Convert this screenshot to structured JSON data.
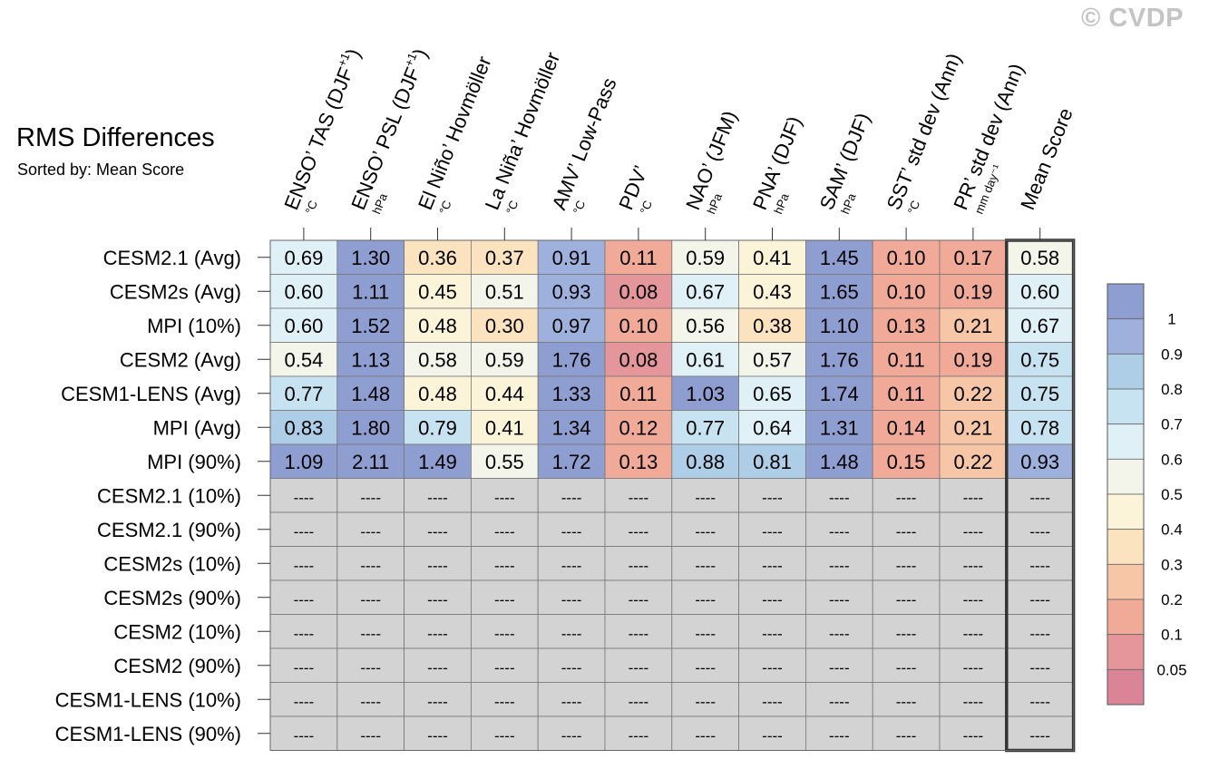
{
  "watermark": "© CVDP",
  "chart_data": {
    "type": "heatmap",
    "title": "RMS Differences",
    "subtitle": "Sorted by: Mean Score",
    "columns": [
      {
        "label": "ENSO’ TAS (DJF",
        "sup": "+1",
        "tail": ")",
        "unit": "°C"
      },
      {
        "label": "ENSO’ PSL (DJF",
        "sup": "+1",
        "tail": ")",
        "unit": "hPa"
      },
      {
        "label": "El Niño’ Hovmöller",
        "sup": "",
        "tail": "",
        "unit": "°C"
      },
      {
        "label": "La Niña’ Hovmöller",
        "sup": "",
        "tail": "",
        "unit": "°C"
      },
      {
        "label": "AMV’ Low-Pass",
        "sup": "",
        "tail": "",
        "unit": "°C"
      },
      {
        "label": "PDV’",
        "sup": "",
        "tail": "",
        "unit": "°C"
      },
      {
        "label": "NAO’ (JFM)",
        "sup": "",
        "tail": "",
        "unit": "hPa"
      },
      {
        "label": "PNA’ (DJF)",
        "sup": "",
        "tail": "",
        "unit": "hPa"
      },
      {
        "label": "SAM’ (DJF)",
        "sup": "",
        "tail": "",
        "unit": "hPa"
      },
      {
        "label": "SST’ std dev (Ann)",
        "sup": "",
        "tail": "",
        "unit": "°C"
      },
      {
        "label": "PR’ std dev (Ann)",
        "sup": "",
        "tail": "",
        "unit": "mm day⁻¹"
      },
      {
        "label": "Mean Score",
        "sup": "",
        "tail": "",
        "unit": ""
      }
    ],
    "rows": [
      {
        "name": "CESM2.1 (Avg)",
        "values": [
          "0.69",
          "1.30",
          "0.36",
          "0.37",
          "0.91",
          "0.11",
          "0.59",
          "0.41",
          "1.45",
          "0.10",
          "0.17",
          "0.58"
        ]
      },
      {
        "name": "CESM2s (Avg)",
        "values": [
          "0.60",
          "1.11",
          "0.45",
          "0.51",
          "0.93",
          "0.08",
          "0.67",
          "0.43",
          "1.65",
          "0.10",
          "0.19",
          "0.60"
        ]
      },
      {
        "name": "MPI (10%)",
        "values": [
          "0.60",
          "1.52",
          "0.48",
          "0.30",
          "0.97",
          "0.10",
          "0.56",
          "0.38",
          "1.10",
          "0.13",
          "0.21",
          "0.67"
        ]
      },
      {
        "name": "CESM2 (Avg)",
        "values": [
          "0.54",
          "1.13",
          "0.58",
          "0.59",
          "1.76",
          "0.08",
          "0.61",
          "0.57",
          "1.76",
          "0.11",
          "0.19",
          "0.75"
        ]
      },
      {
        "name": "CESM1-LENS (Avg)",
        "values": [
          "0.77",
          "1.48",
          "0.48",
          "0.44",
          "1.33",
          "0.11",
          "1.03",
          "0.65",
          "1.74",
          "0.11",
          "0.22",
          "0.75"
        ]
      },
      {
        "name": "MPI (Avg)",
        "values": [
          "0.83",
          "1.80",
          "0.79",
          "0.41",
          "1.34",
          "0.12",
          "0.77",
          "0.64",
          "1.31",
          "0.14",
          "0.21",
          "0.78"
        ]
      },
      {
        "name": "MPI (90%)",
        "values": [
          "1.09",
          "2.11",
          "1.49",
          "0.55",
          "1.72",
          "0.13",
          "0.88",
          "0.81",
          "1.48",
          "0.15",
          "0.22",
          "0.93"
        ]
      },
      {
        "name": "CESM2.1 (10%)",
        "values": [
          "----",
          "----",
          "----",
          "----",
          "----",
          "----",
          "----",
          "----",
          "----",
          "----",
          "----",
          "----"
        ]
      },
      {
        "name": "CESM2.1 (90%)",
        "values": [
          "----",
          "----",
          "----",
          "----",
          "----",
          "----",
          "----",
          "----",
          "----",
          "----",
          "----",
          "----"
        ]
      },
      {
        "name": "CESM2s (10%)",
        "values": [
          "----",
          "----",
          "----",
          "----",
          "----",
          "----",
          "----",
          "----",
          "----",
          "----",
          "----",
          "----"
        ]
      },
      {
        "name": "CESM2s (90%)",
        "values": [
          "----",
          "----",
          "----",
          "----",
          "----",
          "----",
          "----",
          "----",
          "----",
          "----",
          "----",
          "----"
        ]
      },
      {
        "name": "CESM2 (10%)",
        "values": [
          "----",
          "----",
          "----",
          "----",
          "----",
          "----",
          "----",
          "----",
          "----",
          "----",
          "----",
          "----"
        ]
      },
      {
        "name": "CESM2 (90%)",
        "values": [
          "----",
          "----",
          "----",
          "----",
          "----",
          "----",
          "----",
          "----",
          "----",
          "----",
          "----",
          "----"
        ]
      },
      {
        "name": "CESM1-LENS (10%)",
        "values": [
          "----",
          "----",
          "----",
          "----",
          "----",
          "----",
          "----",
          "----",
          "----",
          "----",
          "----",
          "----"
        ]
      },
      {
        "name": "CESM1-LENS (90%)",
        "values": [
          "----",
          "----",
          "----",
          "----",
          "----",
          "----",
          "----",
          "----",
          "----",
          "----",
          "----",
          "----"
        ]
      }
    ],
    "colorbar": {
      "labels": [
        "1",
        "0.9",
        "0.8",
        "0.7",
        "0.6",
        "0.5",
        "0.4",
        "0.3",
        "0.2",
        "0.1",
        "0.05"
      ],
      "levels": [
        0.05,
        0.1,
        0.2,
        0.3,
        0.4,
        0.5,
        0.6,
        0.7,
        0.8,
        0.9,
        1
      ],
      "colors": [
        "#dc8497",
        "#e4969a",
        "#f2aa98",
        "#f7c6a6",
        "#fbe3c0",
        "#fbf4d8",
        "#f3f5ea",
        "#dff1f7",
        "#c7e3f1",
        "#aecde6",
        "#9db1dc",
        "#8f9ed0"
      ]
    },
    "missing_color": "#d3d3d3",
    "highlight_column": "Mean Score",
    "legend_position": "right"
  }
}
